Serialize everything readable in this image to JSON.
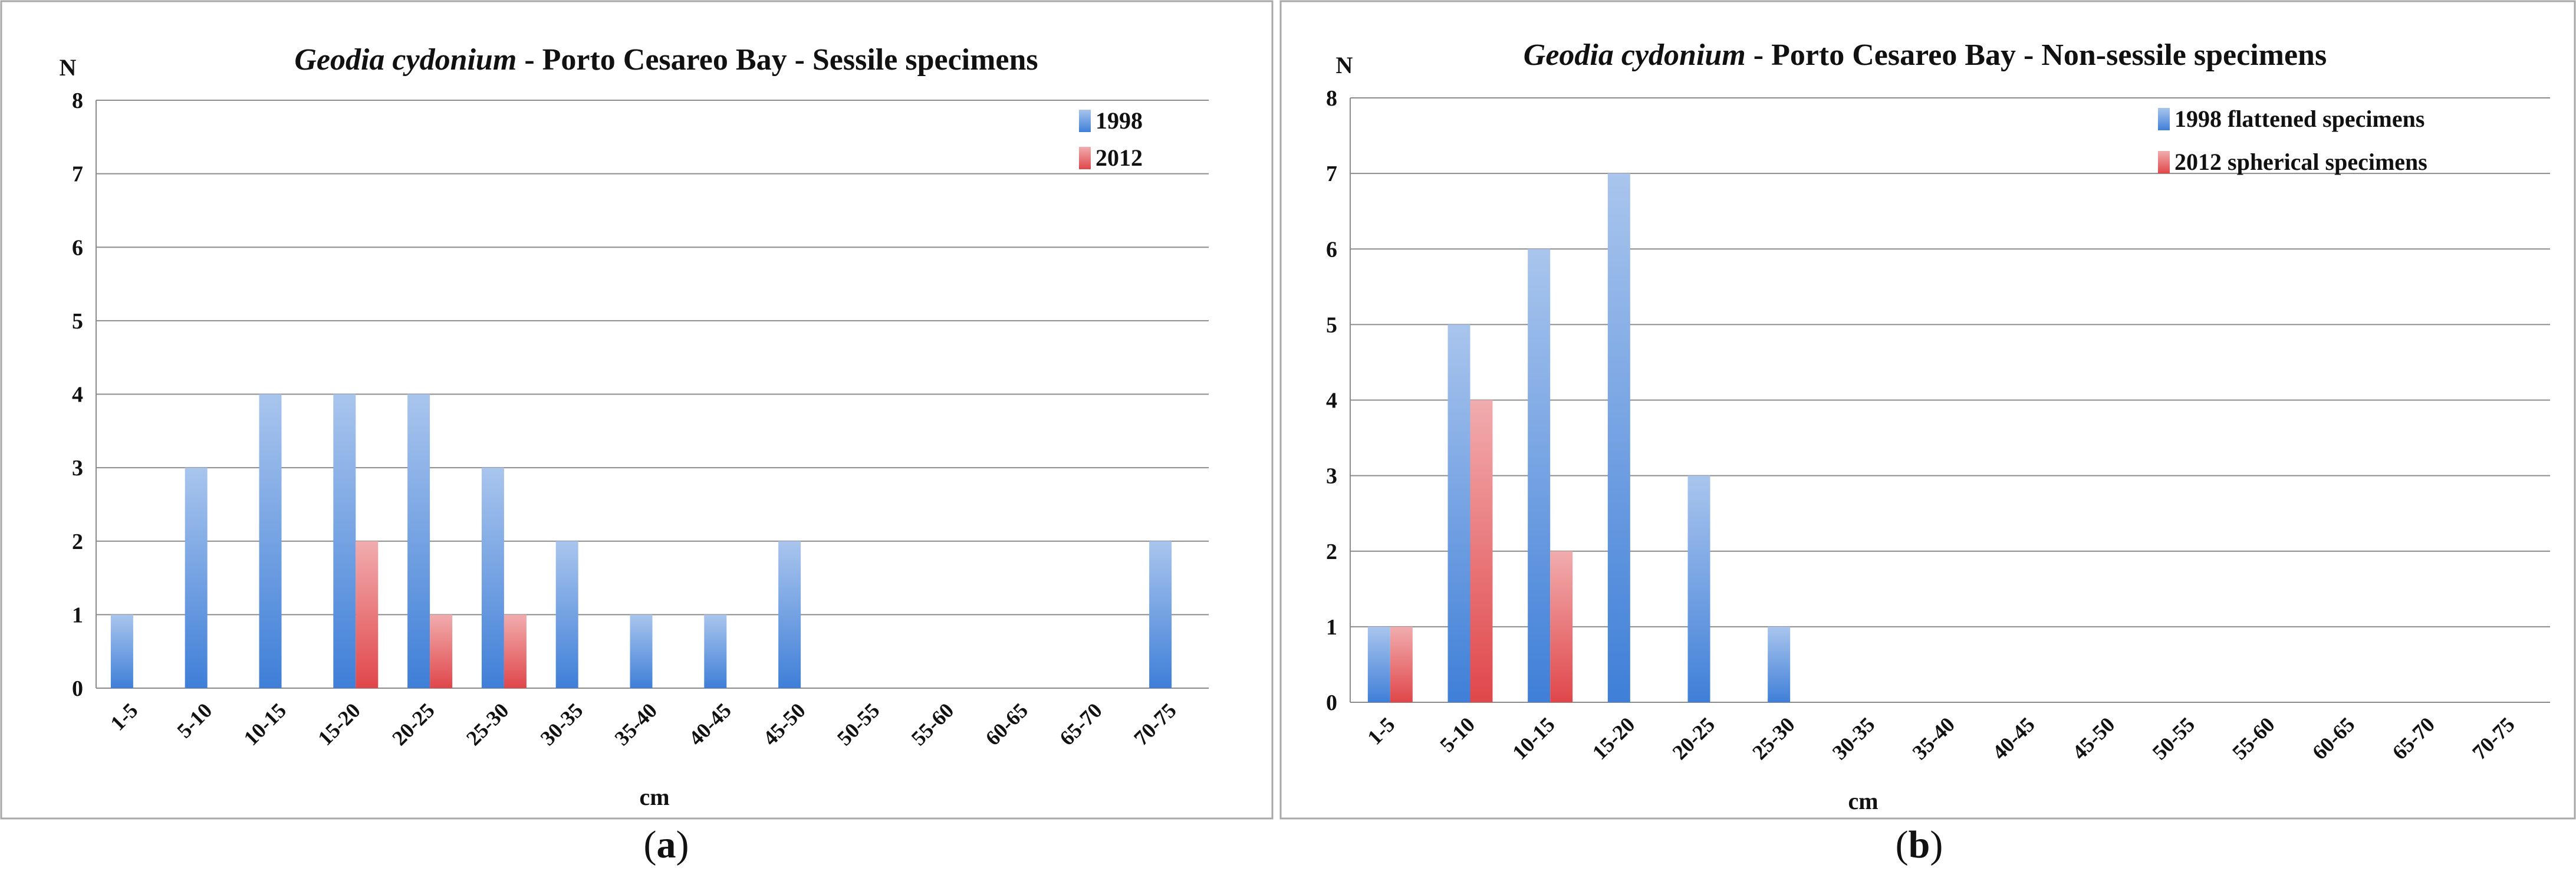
{
  "chart_data": [
    {
      "type": "bar",
      "title_italic": "Geodia cydonium",
      "title_rest": " - Porto Cesareo Bay - Sessile specimens",
      "ylabel": "N",
      "xlabel": "cm",
      "ylim": [
        0,
        8
      ],
      "yticks": [
        "0",
        "1",
        "2",
        "3",
        "4",
        "5",
        "6",
        "7",
        "8"
      ],
      "categories": [
        "1-5",
        "5-10",
        "10-15",
        "15-20",
        "20-25",
        "25-30",
        "30-35",
        "35-40",
        "40-45",
        "45-50",
        "50-55",
        "55-60",
        "60-65",
        "65-70",
        "70-75"
      ],
      "series": [
        {
          "name": "1998",
          "color": "#3f7fd8",
          "values": [
            1,
            3,
            4,
            4,
            4,
            3,
            2,
            1,
            1,
            2,
            0,
            0,
            0,
            0,
            2
          ]
        },
        {
          "name": "2012",
          "color": "#e0474a",
          "values": [
            0,
            0,
            0,
            2,
            1,
            1,
            0,
            0,
            0,
            0,
            0,
            0,
            0,
            0,
            0
          ]
        }
      ],
      "legend_position": "top-right",
      "caption_letter": "a"
    },
    {
      "type": "bar",
      "title_italic": "Geodia cydonium",
      "title_rest": " - Porto Cesareo Bay - Non-sessile specimens",
      "ylabel": "N",
      "xlabel": "cm",
      "ylim": [
        0,
        8
      ],
      "yticks": [
        "0",
        "1",
        "2",
        "3",
        "4",
        "5",
        "6",
        "7",
        "8"
      ],
      "categories": [
        "1-5",
        "5-10",
        "10-15",
        "15-20",
        "20-25",
        "25-30",
        "30-35",
        "35-40",
        "40-45",
        "45-50",
        "50-55",
        "55-60",
        "60-65",
        "65-70",
        "70-75"
      ],
      "series": [
        {
          "name": "1998 flattened specimens",
          "color": "#3f7fd8",
          "values": [
            1,
            5,
            6,
            7,
            3,
            1,
            0,
            0,
            0,
            0,
            0,
            0,
            0,
            0,
            0
          ]
        },
        {
          "name": "2012 spherical specimens",
          "color": "#e0474a",
          "values": [
            1,
            4,
            2,
            0,
            0,
            0,
            0,
            0,
            0,
            0,
            0,
            0,
            0,
            0,
            0
          ]
        }
      ],
      "legend_position": "top-right",
      "caption_letter": "b"
    }
  ]
}
